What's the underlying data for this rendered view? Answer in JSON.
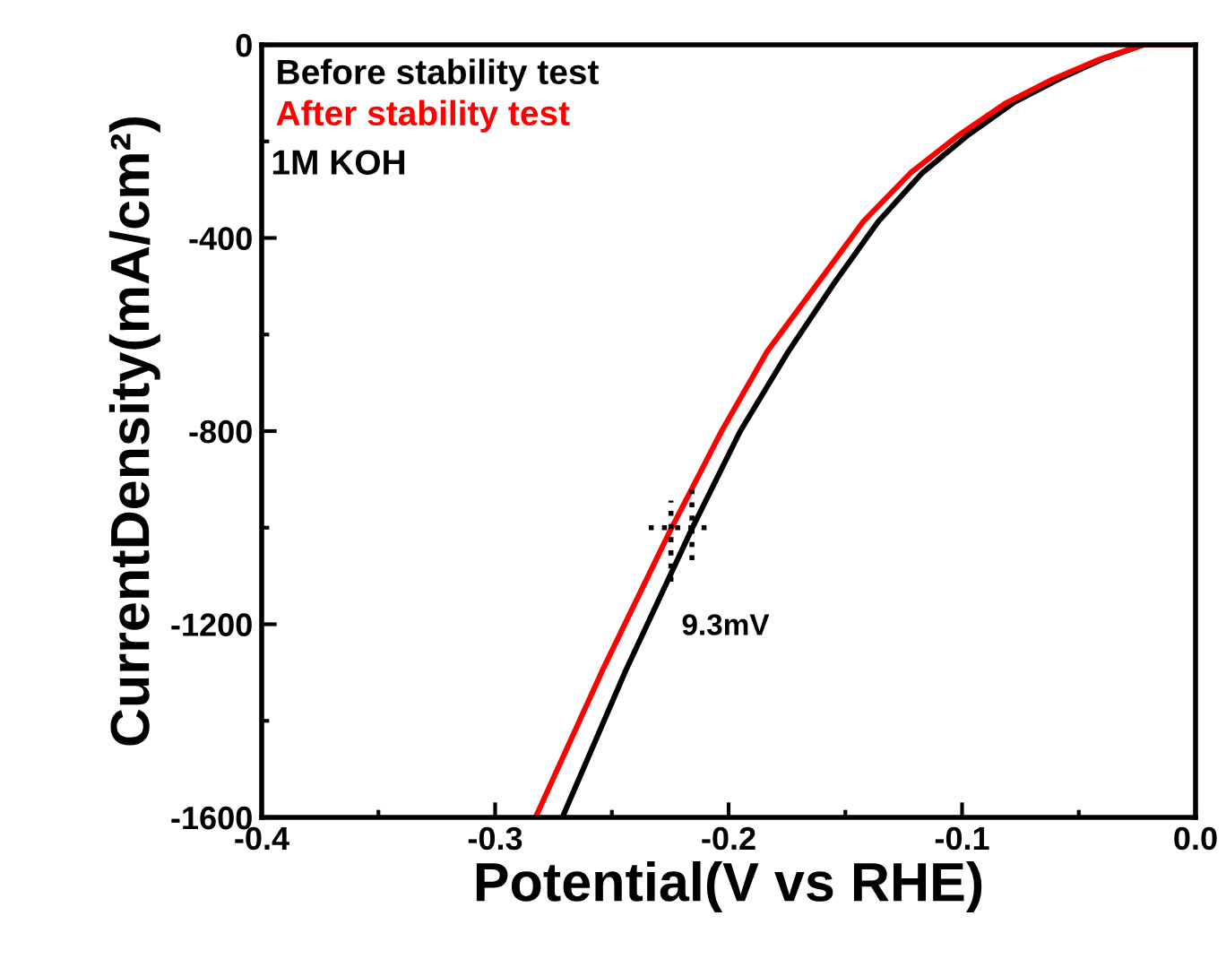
{
  "chart_data": {
    "type": "line",
    "xlabel": "Potential(V vs RHE)",
    "ylabel": "CurrentDensity(mA/cm²)",
    "series": [
      {
        "name": "Before stability test",
        "color": "#000000",
        "x": [
          -0.2712,
          -0.244,
          -0.2158,
          -0.195,
          -0.1745,
          -0.155,
          -0.1359,
          -0.117,
          -0.0972,
          -0.078,
          -0.0585,
          -0.04,
          -0.0224,
          0.0
        ],
        "values": [
          -1600,
          -1295,
          -1003,
          -800,
          -636,
          -495,
          -366,
          -265,
          -186,
          -120,
          -71,
          -30,
          0,
          0
        ]
      },
      {
        "name": "After stability test",
        "color": "#ff0000",
        "x": [
          -0.2827,
          -0.254,
          -0.2247,
          -0.203,
          -0.1836,
          -0.162,
          -0.1423,
          -0.122,
          -0.1011,
          -0.081,
          -0.061,
          -0.041,
          -0.0224,
          0.0
        ],
        "values": [
          -1600,
          -1295,
          -1003,
          -800,
          -636,
          -495,
          -366,
          -265,
          -186,
          -120,
          -71,
          -30,
          0,
          0
        ]
      }
    ],
    "annotations": [
      "1M KOH",
      {
        "text": "9.3mV",
        "x": -0.2202,
        "y": -1000
      }
    ],
    "xlim": [
      -0.4,
      0.0
    ],
    "xticks": [
      -0.4,
      -0.3,
      -0.2,
      -0.1,
      {
        "value": 0,
        "label": "0.0"
      }
    ],
    "ylim": [
      -1600,
      0
    ],
    "yticks": [
      -1600,
      -1200,
      -800,
      -400,
      0
    ],
    "legend": "top left",
    "line_style": "solid",
    "marker": "none"
  }
}
